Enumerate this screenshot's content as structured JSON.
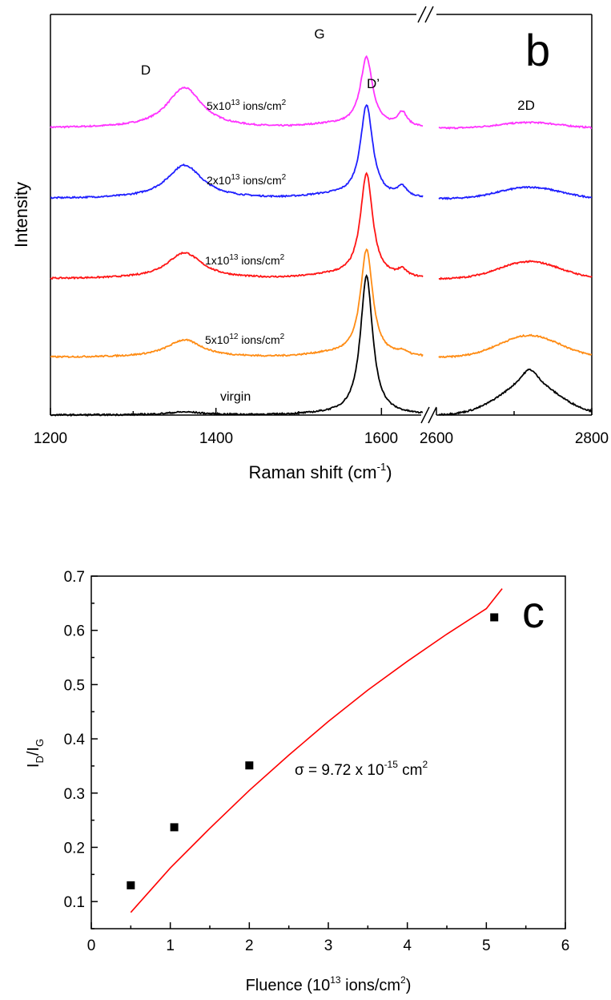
{
  "panel_b": {
    "letter": "b",
    "xlabel_main": "Raman shift (cm",
    "xlabel_sup": "-1",
    "xlabel_end": ")",
    "ylabel": "Intensity",
    "peak_labels": {
      "D": "D",
      "G": "G",
      "Dprime": "D’",
      "twoD": "2D"
    },
    "xticks_left": [
      "1200",
      "1400",
      "1600"
    ],
    "xticks_right": [
      "2600",
      "2800"
    ],
    "trace_labels": [
      {
        "base": "5x10",
        "exp": "13",
        "unit": " ions/cm",
        "unit_exp": "2"
      },
      {
        "base": "2x10",
        "exp": "13",
        "unit": " ions/cm",
        "unit_exp": "2"
      },
      {
        "base": "1x10",
        "exp": "13",
        "unit": " ions/cm",
        "unit_exp": "2"
      },
      {
        "base": "5x10",
        "exp": "12",
        "unit": " ions/cm",
        "unit_exp": "2"
      },
      {
        "text": "virgin"
      }
    ]
  },
  "panel_c": {
    "letter": "c",
    "xlabel_main": "Fluence (10",
    "xlabel_sup": "13",
    "xlabel_end": " ions/cm",
    "xlabel_sup2": "2",
    "xlabel_close": ")",
    "ylabel_main": "I",
    "ylabel_sub1": "D",
    "ylabel_mid": "/I",
    "ylabel_sub2": "G",
    "annotation_main": "σ = 9.72 x 10",
    "annotation_sup": "-15",
    "annotation_end": " cm",
    "annotation_sup2": "2"
  },
  "chart_data": [
    {
      "type": "line",
      "panel": "b",
      "xlabel": "Raman shift (cm-1)",
      "ylabel": "Intensity",
      "x_segments": [
        [
          1200,
          1650
        ],
        [
          2600,
          2800
        ]
      ],
      "axis_break": true,
      "peaks": {
        "D": 1362,
        "G": 1582,
        "Dprime": 1625,
        "2D": 2720
      },
      "series": [
        {
          "name": "5x10^13 ions/cm^2",
          "color": "#ff33ff",
          "baseline": 0.0,
          "D": 0.7,
          "G": 1.2,
          "Dprime": 0.25,
          "twoD": 0.1,
          "twoD_shoulder": 0.0
        },
        {
          "name": "2x10^13 ions/cm^2",
          "color": "#1f1fff",
          "baseline": 0.0,
          "D": 0.58,
          "G": 1.6,
          "Dprime": 0.17,
          "twoD": 0.2,
          "twoD_shoulder": 0.0
        },
        {
          "name": "1x10^13 ions/cm^2",
          "color": "#ff1414",
          "baseline": 0.0,
          "D": 0.45,
          "G": 1.8,
          "Dprime": 0.12,
          "twoD": 0.3,
          "twoD_shoulder": 0.0
        },
        {
          "name": "5x10^12 ions/cm^2",
          "color": "#ff8c14",
          "baseline": 0.0,
          "D": 0.3,
          "G": 1.85,
          "Dprime": 0.07,
          "twoD": 0.38,
          "twoD_shoulder": 0.0
        },
        {
          "name": "virgin",
          "color": "#000000",
          "baseline": 0.0,
          "D": 0.05,
          "G": 2.4,
          "Dprime": 0.0,
          "twoD": 0.5,
          "twoD_shoulder": 0.18
        }
      ]
    },
    {
      "type": "scatter",
      "panel": "c",
      "xlabel": "Fluence (10^13 ions/cm^2)",
      "ylabel": "ID/IG",
      "xlim": [
        0,
        6
      ],
      "ylim": [
        0.05,
        0.7
      ],
      "xticks": [
        0,
        1,
        2,
        3,
        4,
        5,
        6
      ],
      "yticks": [
        0.1,
        0.2,
        0.3,
        0.4,
        0.5,
        0.6,
        0.7
      ],
      "points": [
        {
          "x": 0.5,
          "y": 0.13
        },
        {
          "x": 1.05,
          "y": 0.237
        },
        {
          "x": 2.0,
          "y": 0.351
        },
        {
          "x": 5.1,
          "y": 0.624
        }
      ],
      "fit": {
        "color": "#ff0000",
        "x": [
          0.5,
          1.0,
          1.5,
          2.0,
          2.5,
          3.0,
          3.5,
          4.0,
          4.5,
          5.0,
          5.2
        ],
        "y": [
          0.08,
          0.162,
          0.235,
          0.305,
          0.37,
          0.432,
          0.49,
          0.543,
          0.593,
          0.64,
          0.677
        ]
      }
    }
  ]
}
